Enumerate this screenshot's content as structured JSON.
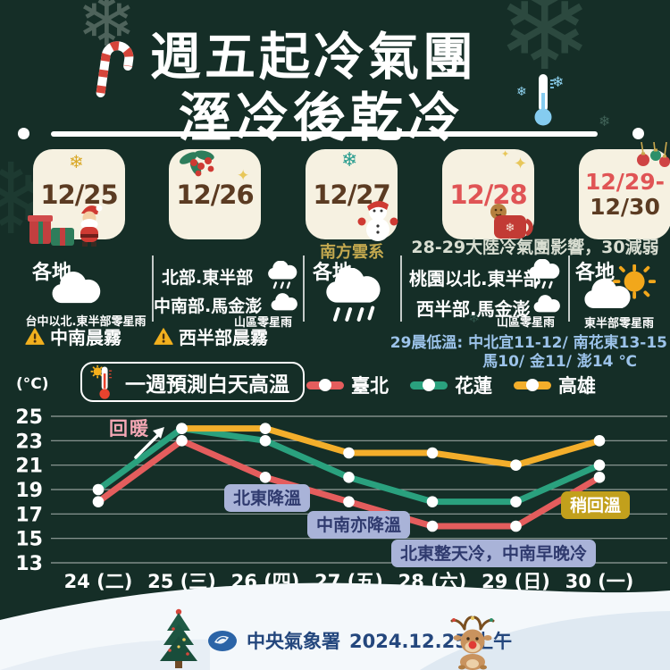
{
  "header": {
    "title_line1": "週五起冷氣團",
    "title_line2": "溼冷後乾冷"
  },
  "icons": {
    "snowflake": "❄",
    "sparkle": "✦"
  },
  "cards": {
    "c1": {
      "date": "12/25",
      "decorations": [
        "gold-snowflake-icon",
        "santa-icon",
        "gifts-icon"
      ]
    },
    "c2": {
      "date": "12/26",
      "decorations": [
        "mistletoe-icon",
        "sparkle-icon"
      ]
    },
    "c3": {
      "date": "12/27",
      "note": "南方雲系",
      "decorations": [
        "teal-snowflake-icon",
        "snowman-icon"
      ]
    },
    "c4": {
      "date": "12/28",
      "decorations": [
        "sparkle-icon",
        "cocoa-mug-icon",
        "gingerbread-icon"
      ]
    },
    "c5": {
      "date_line1": "12/29-",
      "date_line2": "12/30",
      "decorations": [
        "ornaments-icon"
      ]
    },
    "right_note": "28-29大陸冷氣團影響，30減弱"
  },
  "forecast": {
    "col1": {
      "region": "各地",
      "icon": "cloud-icon",
      "caption": "台中以北.東半部零星雨",
      "warning": "中南晨霧"
    },
    "col2": {
      "row1": "北部.東半部",
      "row1_icon": "rain-cloud-icon",
      "row2": "中南部.馬金澎",
      "row2_icon": "cloud-icon",
      "caption": "山區零星雨",
      "warning": "西半部晨霧"
    },
    "col3": {
      "region": "各地",
      "icon": "rain-cloud-icon"
    },
    "col4": {
      "row1": "桃園以北.東半部",
      "row1_icon": "rain-cloud-icon",
      "row2": "西半部.馬金澎",
      "row2_icon": "cloud-icon",
      "caption": "山區零星雨"
    },
    "col5": {
      "region": "各地",
      "icon": "sun-cloud-icon",
      "caption": "東半部零星雨"
    }
  },
  "cold_note": {
    "line1": "29晨低溫: 中北宜11-12/ 南花東13-15",
    "line2": "馬10/ 金11/ 澎14 ℃"
  },
  "chart_header": {
    "unit": "(°C)",
    "title": "一週預測白天高溫"
  },
  "chart_data": {
    "type": "line",
    "title": "一週預測白天高溫",
    "ylabel": "(°C)",
    "xlabel": "",
    "grid": true,
    "legend_position": "top-right",
    "ylim": [
      13,
      25
    ],
    "yticks": [
      25,
      23,
      21,
      19,
      17,
      15,
      13
    ],
    "categories": [
      "24 (二)",
      "25 (三)",
      "26 (四)",
      "27 (五)",
      "28 (六)",
      "29 (日)",
      "30 (一)"
    ],
    "series": [
      {
        "name": "臺北",
        "color": "#e45d5d",
        "values": [
          18,
          23,
          20,
          18,
          16,
          16,
          20
        ]
      },
      {
        "name": "花蓮",
        "color": "#2aa17e",
        "values": [
          19,
          24,
          23,
          20,
          18,
          18,
          21
        ]
      },
      {
        "name": "高雄",
        "color": "#f3ae2b",
        "values": [
          null,
          24,
          24,
          22,
          22,
          21,
          23
        ]
      }
    ],
    "annotations": [
      {
        "text": "回暖",
        "type": "arrow-up-label"
      },
      {
        "text": "北東降溫",
        "type": "badge"
      },
      {
        "text": "中南亦降溫",
        "type": "badge"
      },
      {
        "text": "北東整天冷，中南早晚冷",
        "type": "badge"
      },
      {
        "text": "稍回溫",
        "type": "gold-badge"
      }
    ]
  },
  "colors": {
    "background": "#152e27",
    "card_bg": "#f6f1e1",
    "date_brown": "#5b3b22",
    "date_red": "#e05455",
    "taipei": "#e45d5d",
    "hualien": "#2aa17e",
    "kaohsiung": "#f3ae2b",
    "badge_bg": "#a9b3d8",
    "badge_text": "#2f3a6e",
    "gold_badge": "#c2a01c",
    "cold_note_blue": "#9cc3ea",
    "footer_text": "#24477d"
  },
  "footer": {
    "agency": "中央氣象署",
    "date": "2024.12.25 上午"
  }
}
